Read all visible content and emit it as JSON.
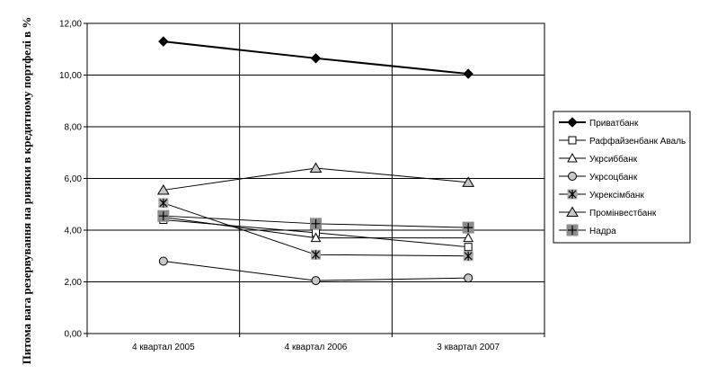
{
  "chart_data": {
    "type": "line",
    "categories": [
      "4 квартал 2005",
      "4 квартал 2006",
      "3 квартал 2007"
    ],
    "ylabel": "Питома вага резервування на ризики в кредитному портфелі в %",
    "ylim": [
      0,
      12
    ],
    "yticks": [
      "0,00",
      "2,00",
      "4,00",
      "6,00",
      "8,00",
      "10,00",
      "12,00"
    ],
    "grid": true,
    "legend_position": "right",
    "series": [
      {
        "name": "Приватбанк",
        "values": [
          11.3,
          10.65,
          10.05
        ],
        "marker": "diamond-filled",
        "line_color": "#000000",
        "line_weight": "bold"
      },
      {
        "name": "Раффайзенбанк Аваль",
        "values": [
          4.4,
          3.9,
          3.35
        ],
        "marker": "square-open",
        "line_color": "#000000",
        "line_weight": "normal"
      },
      {
        "name": "Укрсиббанк",
        "values": [
          4.5,
          3.7,
          3.7
        ],
        "marker": "triangle-open",
        "line_color": "#000000",
        "line_weight": "normal"
      },
      {
        "name": "Укрсоцбанк",
        "values": [
          2.8,
          2.05,
          2.15
        ],
        "marker": "circle-gray",
        "line_color": "#000000",
        "line_weight": "normal"
      },
      {
        "name": "Укрексімбанк",
        "values": [
          5.05,
          3.05,
          3.0
        ],
        "marker": "asterisk-gray",
        "line_color": "#000000",
        "line_weight": "normal"
      },
      {
        "name": "Промінвестбанк",
        "values": [
          5.55,
          6.4,
          5.85
        ],
        "marker": "triangle-gray",
        "line_color": "#000000",
        "line_weight": "normal"
      },
      {
        "name": "Надра",
        "values": [
          4.55,
          4.25,
          4.1
        ],
        "marker": "plus-square-gray",
        "line_color": "#000000",
        "line_weight": "normal"
      }
    ]
  }
}
